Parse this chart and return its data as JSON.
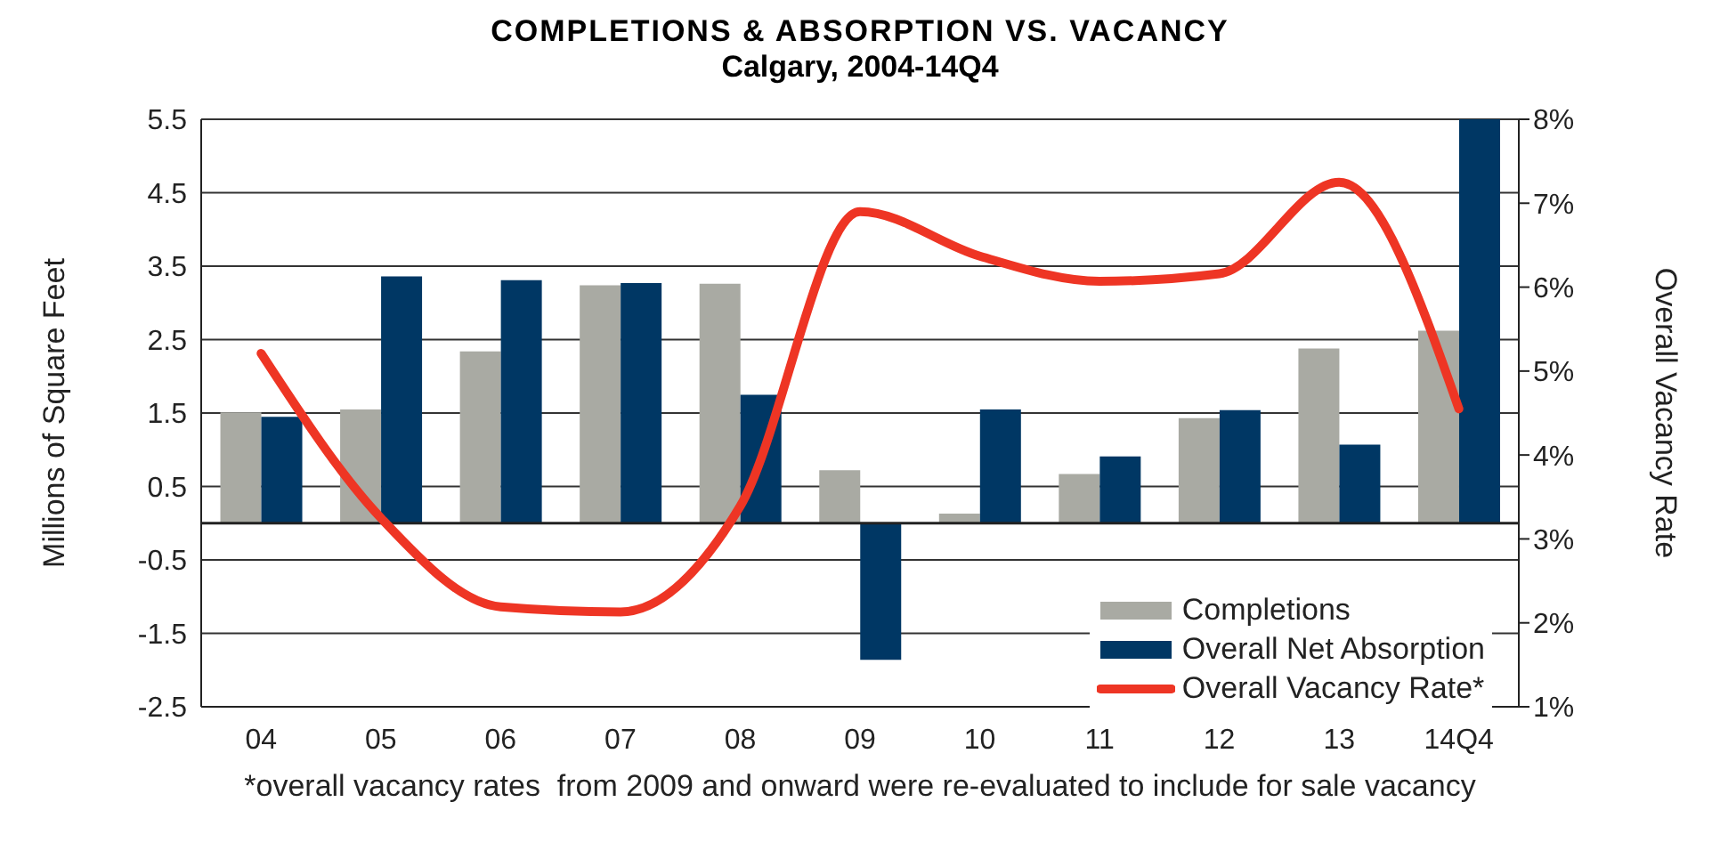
{
  "chart_data": {
    "type": "bar",
    "title": "COMPLETIONS & ABSORPTION VS. VACANCY",
    "subtitle": "Calgary, 2004-14Q4",
    "ylabel": "Millions of Square Feet",
    "y2label": "Overall Vacancy Rate",
    "categories": [
      "04",
      "05",
      "06",
      "07",
      "08",
      "09",
      "10",
      "11",
      "12",
      "13",
      "14Q4"
    ],
    "series": [
      {
        "name": "Completions",
        "color": "#a9aaa3",
        "values": [
          1.51,
          1.55,
          2.34,
          3.24,
          3.26,
          0.72,
          0.13,
          0.67,
          1.43,
          2.38,
          2.62
        ]
      },
      {
        "name": "Overall Net Absorption",
        "color": "#003764",
        "values": [
          1.45,
          3.36,
          3.31,
          3.27,
          1.75,
          -1.86,
          1.55,
          0.91,
          1.54,
          1.07,
          5.5
        ]
      },
      {
        "name": "Overall Vacancy Rate*",
        "type": "line",
        "axis": "y2",
        "color": "#ee3524",
        "values": [
          5.21,
          3.25,
          2.19,
          2.13,
          3.39,
          6.9,
          6.37,
          6.07,
          6.16,
          7.25,
          4.55
        ]
      }
    ],
    "ylim": [
      -2.5,
      5.5
    ],
    "yticks": [
      -2.5,
      -1.5,
      -0.5,
      0.5,
      1.5,
      2.5,
      3.5,
      4.5,
      5.5
    ],
    "y2lim": [
      1,
      8
    ],
    "y2ticks": [
      {
        "value": 1,
        "label": "1%"
      },
      {
        "value": 2,
        "label": "2%"
      },
      {
        "value": 3,
        "label": "3%"
      },
      {
        "value": 4,
        "label": "4%"
      },
      {
        "value": 5,
        "label": "5%"
      },
      {
        "value": 6,
        "label": "6%"
      },
      {
        "value": 7,
        "label": "7%"
      },
      {
        "value": 8,
        "label": "8%"
      }
    ],
    "grid": "y",
    "legend": "bottom right",
    "marker": "none",
    "line_style": "solid",
    "annotations": [
      "*overall vacancy rates  from 2009 and onward were re-evaluated to include for sale vacancy"
    ]
  }
}
